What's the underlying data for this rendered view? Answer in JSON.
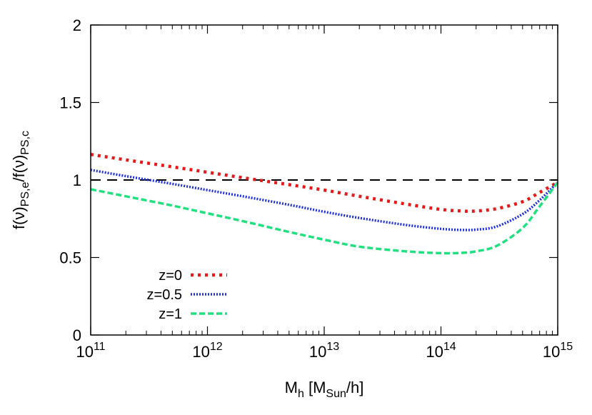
{
  "chart_data": {
    "type": "line",
    "title": "",
    "xlabel": {
      "main": "M",
      "sub": "h",
      "mid": " [M",
      "sub2": "Sun",
      "tail": "/h]"
    },
    "ylabel": {
      "p1": "f(ν)",
      "s1": "PS,e",
      "p2": "/f(ν)",
      "s2": "PS,c"
    },
    "x_scale": "log",
    "xlim": [
      100000000000.0,
      1000000000000000.0
    ],
    "ylim": [
      0,
      2
    ],
    "x_ticks": [
      {
        "value": 100000000000.0,
        "base": "10",
        "exp": "11"
      },
      {
        "value": 1000000000000.0,
        "base": "10",
        "exp": "12"
      },
      {
        "value": 10000000000000.0,
        "base": "10",
        "exp": "13"
      },
      {
        "value": 100000000000000.0,
        "base": "10",
        "exp": "14"
      },
      {
        "value": 1000000000000000.0,
        "base": "10",
        "exp": "15"
      }
    ],
    "y_ticks": [
      {
        "value": 0,
        "label": "0"
      },
      {
        "value": 0.5,
        "label": "0.5"
      },
      {
        "value": 1,
        "label": "1"
      },
      {
        "value": 1.5,
        "label": "1.5"
      },
      {
        "value": 2,
        "label": "2"
      }
    ],
    "grid": false,
    "legend_position": "bottom-left",
    "reference_line": {
      "y": 1,
      "color": "#000000",
      "style": "dashed"
    },
    "series": [
      {
        "name": "z=0",
        "color": "#e41a1c",
        "style": "dotted-thick",
        "x": [
          100000000000.0,
          200000000000.0,
          500000000000.0,
          1000000000000.0,
          2000000000000.0,
          5000000000000.0,
          10000000000000.0,
          20000000000000.0,
          50000000000000.0,
          100000000000000.0,
          150000000000000.0,
          200000000000000.0,
          300000000000000.0,
          500000000000000.0,
          700000000000000.0,
          1000000000000000.0
        ],
        "y": [
          1.165,
          1.13,
          1.085,
          1.05,
          1.015,
          0.97,
          0.935,
          0.895,
          0.845,
          0.81,
          0.8,
          0.8,
          0.815,
          0.86,
          0.92,
          0.985
        ]
      },
      {
        "name": "z=0.5",
        "color": "#1f2ee0",
        "style": "dotted",
        "x": [
          100000000000.0,
          200000000000.0,
          500000000000.0,
          1000000000000.0,
          2000000000000.0,
          5000000000000.0,
          10000000000000.0,
          20000000000000.0,
          50000000000000.0,
          100000000000000.0,
          150000000000000.0,
          200000000000000.0,
          300000000000000.0,
          500000000000000.0,
          700000000000000.0,
          1000000000000000.0
        ],
        "y": [
          1.065,
          1.025,
          0.975,
          0.935,
          0.895,
          0.84,
          0.795,
          0.755,
          0.71,
          0.685,
          0.678,
          0.68,
          0.7,
          0.78,
          0.87,
          0.985
        ]
      },
      {
        "name": "z=1",
        "color": "#21e07f",
        "style": "dashed",
        "x": [
          100000000000.0,
          200000000000.0,
          500000000000.0,
          1000000000000.0,
          2000000000000.0,
          5000000000000.0,
          10000000000000.0,
          20000000000000.0,
          50000000000000.0,
          100000000000000.0,
          150000000000000.0,
          200000000000000.0,
          300000000000000.0,
          500000000000000.0,
          700000000000000.0,
          1000000000000000.0
        ],
        "y": [
          0.94,
          0.895,
          0.835,
          0.785,
          0.735,
          0.665,
          0.615,
          0.57,
          0.54,
          0.528,
          0.53,
          0.54,
          0.575,
          0.69,
          0.83,
          0.985
        ]
      }
    ]
  }
}
